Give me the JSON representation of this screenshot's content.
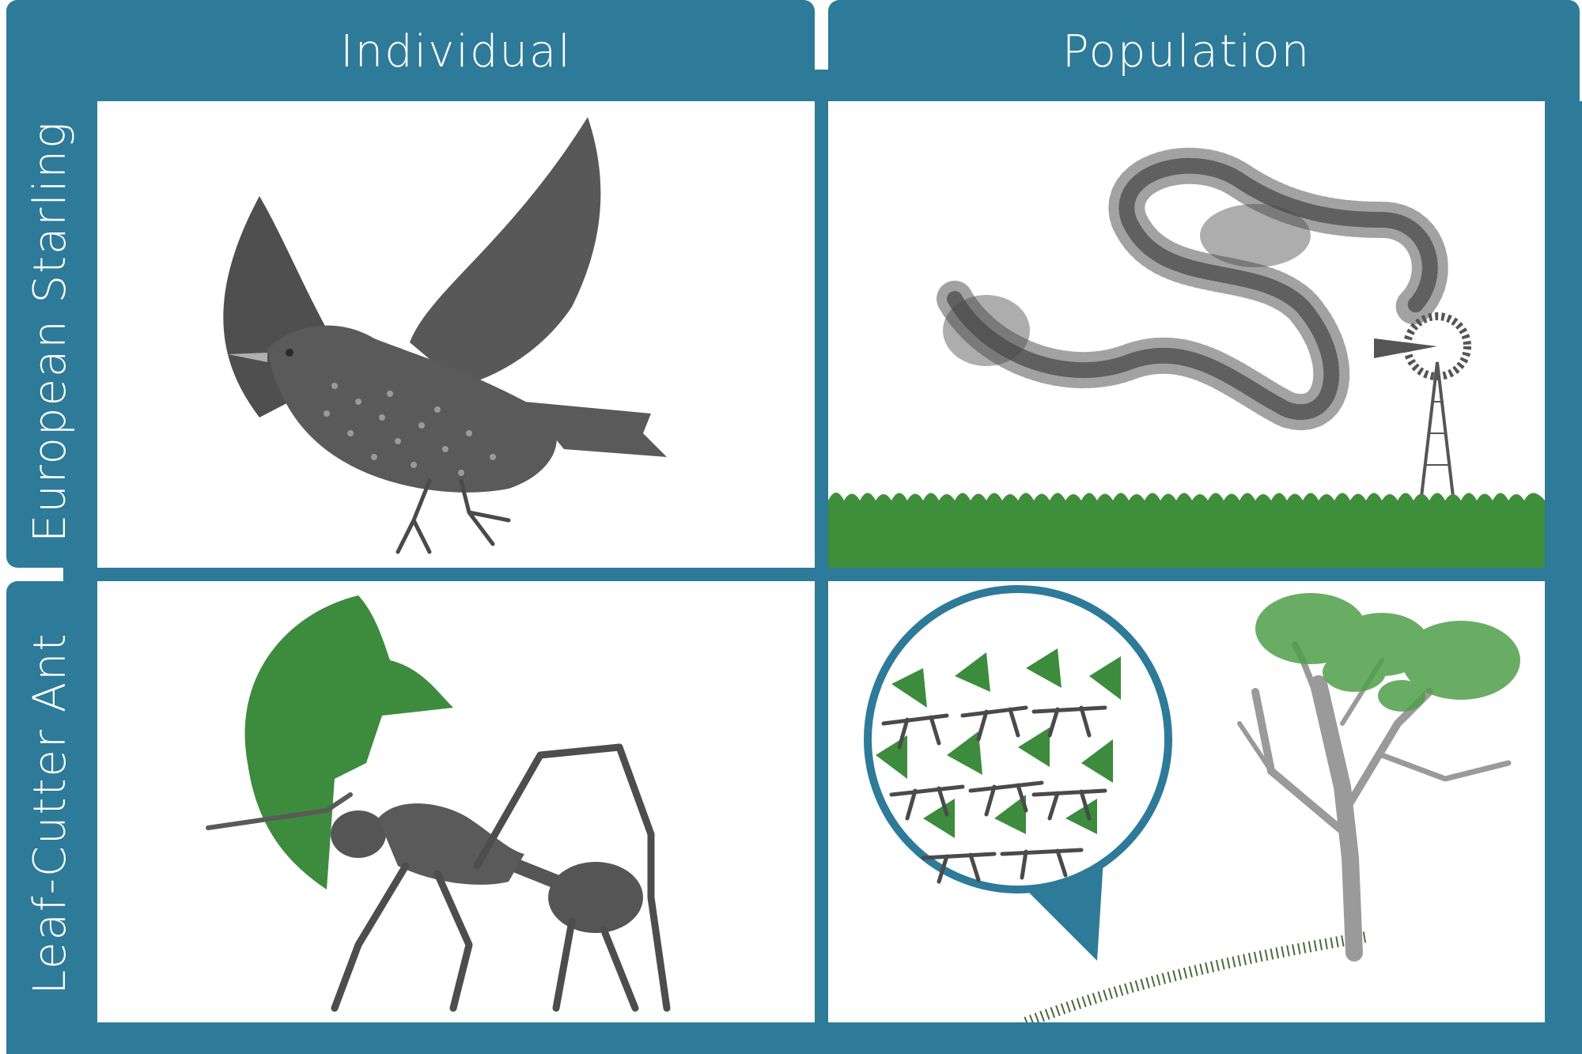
{
  "columns": [
    "Individual",
    "Population"
  ],
  "rows": [
    "European Starling",
    "Leaf-Cutter Ant"
  ],
  "colors": {
    "frame": "#2e7a99",
    "silhouette": "#5a5a5a",
    "leaf": "#3d8c3e",
    "grass": "#3f8f3a",
    "tree": "#9a9a9a"
  },
  "cells": {
    "starling_individual": {
      "subject": "starling-silhouette"
    },
    "starling_population": {
      "subject": "murmuration-over-field"
    },
    "ant_individual": {
      "subject": "ant-carrying-leaf"
    },
    "ant_population": {
      "subject": "ant-trail-to-tree"
    }
  }
}
